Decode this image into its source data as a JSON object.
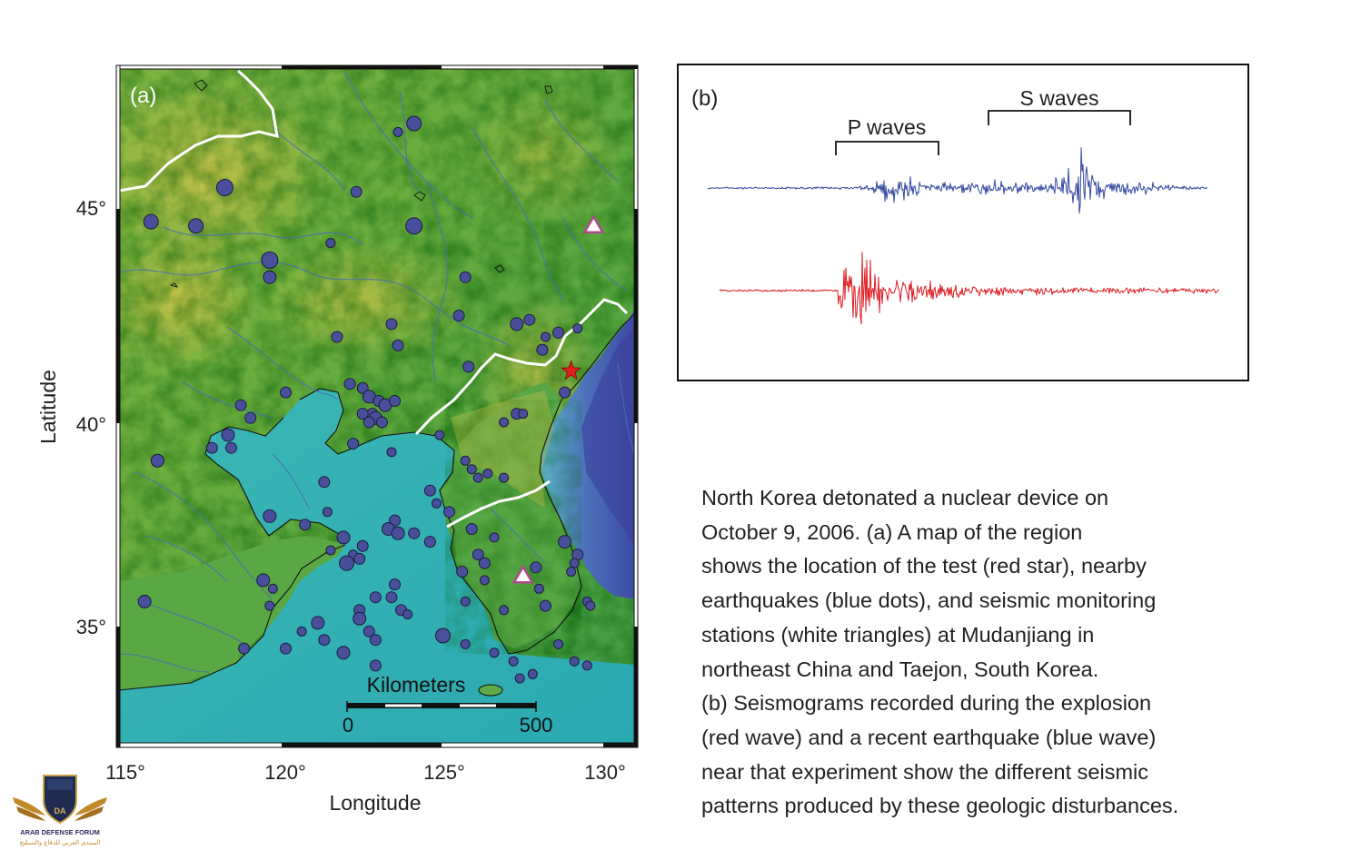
{
  "map": {
    "panel_label": "(a)",
    "ylabel": "Latitude",
    "xlabel": "Longitude",
    "lat_ticks": [
      "45°",
      "40°",
      "35°"
    ],
    "lon_ticks": [
      "115°",
      "120°",
      "125°",
      "130°"
    ],
    "scale": {
      "title": "Kilometers",
      "min": "0",
      "max": "500"
    },
    "test_site": {
      "lon": 128.9,
      "lat": 41.2,
      "color": "#e0201e"
    },
    "stations": [
      {
        "lon": 129.6,
        "lat": 44.6
      },
      {
        "lon": 127.4,
        "lat": 36.4
      }
    ],
    "earthquake_color": "#4a4f9c",
    "earthquakes": [
      [
        124.0,
        47.0,
        8
      ],
      [
        123.5,
        46.8,
        5
      ],
      [
        118.1,
        45.5,
        9
      ],
      [
        122.2,
        45.4,
        6
      ],
      [
        115.8,
        44.7,
        8
      ],
      [
        117.2,
        44.6,
        8
      ],
      [
        124.0,
        44.6,
        9
      ],
      [
        121.4,
        44.2,
        5
      ],
      [
        119.5,
        43.8,
        9
      ],
      [
        119.5,
        43.4,
        7
      ],
      [
        125.6,
        43.4,
        6
      ],
      [
        125.4,
        42.5,
        6
      ],
      [
        123.3,
        42.3,
        6
      ],
      [
        127.2,
        42.3,
        7
      ],
      [
        127.6,
        42.4,
        6
      ],
      [
        128.5,
        42.1,
        6
      ],
      [
        128.1,
        42.0,
        5
      ],
      [
        129.1,
        42.2,
        5
      ],
      [
        121.6,
        42.0,
        6
      ],
      [
        123.5,
        41.8,
        6
      ],
      [
        128.0,
        41.7,
        6
      ],
      [
        125.7,
        41.3,
        6
      ],
      [
        122.0,
        40.9,
        6
      ],
      [
        122.4,
        40.8,
        6
      ],
      [
        122.6,
        40.6,
        7
      ],
      [
        122.9,
        40.5,
        6
      ],
      [
        123.1,
        40.4,
        7
      ],
      [
        123.4,
        40.5,
        6
      ],
      [
        122.7,
        40.2,
        6
      ],
      [
        122.4,
        40.2,
        6
      ],
      [
        122.8,
        40.1,
        7
      ],
      [
        122.6,
        40.0,
        6
      ],
      [
        123.0,
        40.0,
        6
      ],
      [
        120.0,
        40.7,
        6
      ],
      [
        118.6,
        40.4,
        6
      ],
      [
        118.9,
        40.1,
        6
      ],
      [
        128.7,
        40.7,
        6
      ],
      [
        127.2,
        40.2,
        6
      ],
      [
        127.4,
        40.2,
        5
      ],
      [
        126.8,
        40.0,
        5
      ],
      [
        118.2,
        39.7,
        7
      ],
      [
        118.3,
        39.4,
        6
      ],
      [
        117.7,
        39.4,
        6
      ],
      [
        122.1,
        39.5,
        6
      ],
      [
        124.8,
        39.7,
        5
      ],
      [
        123.3,
        39.3,
        5
      ],
      [
        116.0,
        39.1,
        7
      ],
      [
        125.6,
        39.1,
        5
      ],
      [
        125.8,
        38.9,
        5
      ],
      [
        126.0,
        38.7,
        5
      ],
      [
        126.3,
        38.8,
        5
      ],
      [
        126.8,
        38.7,
        5
      ],
      [
        121.2,
        38.6,
        6
      ],
      [
        124.5,
        38.4,
        6
      ],
      [
        124.7,
        38.1,
        5
      ],
      [
        125.1,
        37.9,
        6
      ],
      [
        121.3,
        37.9,
        5
      ],
      [
        119.5,
        37.8,
        7
      ],
      [
        120.6,
        37.6,
        6
      ],
      [
        123.4,
        37.7,
        6
      ],
      [
        123.2,
        37.5,
        7
      ],
      [
        123.5,
        37.4,
        7
      ],
      [
        124.0,
        37.4,
        6
      ],
      [
        124.5,
        37.2,
        6
      ],
      [
        125.8,
        37.5,
        6
      ],
      [
        126.5,
        37.3,
        5
      ],
      [
        121.8,
        37.3,
        7
      ],
      [
        122.4,
        37.1,
        6
      ],
      [
        122.1,
        36.9,
        5
      ],
      [
        122.3,
        36.8,
        6
      ],
      [
        121.4,
        37.0,
        5
      ],
      [
        128.7,
        37.2,
        7
      ],
      [
        129.1,
        36.9,
        6
      ],
      [
        129.0,
        36.7,
        5
      ],
      [
        126.0,
        36.9,
        6
      ],
      [
        126.2,
        36.7,
        6
      ],
      [
        121.9,
        36.7,
        8
      ],
      [
        127.8,
        36.6,
        6
      ],
      [
        125.5,
        36.5,
        6
      ],
      [
        126.2,
        36.3,
        5
      ],
      [
        128.9,
        36.5,
        5
      ],
      [
        119.3,
        36.3,
        7
      ],
      [
        119.6,
        36.1,
        5
      ],
      [
        123.4,
        36.2,
        6
      ],
      [
        127.9,
        36.1,
        5
      ],
      [
        115.6,
        35.8,
        7
      ],
      [
        119.5,
        35.7,
        5
      ],
      [
        122.3,
        35.6,
        6
      ],
      [
        122.8,
        35.9,
        6
      ],
      [
        123.3,
        35.9,
        6
      ],
      [
        123.6,
        35.6,
        6
      ],
      [
        128.1,
        35.7,
        6
      ],
      [
        129.4,
        35.8,
        5
      ],
      [
        121.0,
        35.3,
        7
      ],
      [
        122.3,
        35.4,
        7
      ],
      [
        123.8,
        35.5,
        5
      ],
      [
        125.6,
        35.8,
        5
      ],
      [
        126.8,
        35.6,
        5
      ],
      [
        129.5,
        35.7,
        5
      ],
      [
        120.5,
        35.1,
        5
      ],
      [
        121.2,
        34.9,
        6
      ],
      [
        122.6,
        35.1,
        6
      ],
      [
        124.9,
        35.0,
        8
      ],
      [
        125.6,
        34.8,
        5
      ],
      [
        122.8,
        34.9,
        6
      ],
      [
        118.7,
        34.7,
        6
      ],
      [
        120.0,
        34.7,
        6
      ],
      [
        121.8,
        34.6,
        7
      ],
      [
        126.5,
        34.6,
        5
      ],
      [
        127.1,
        34.4,
        5
      ],
      [
        128.5,
        34.8,
        5
      ],
      [
        129.0,
        34.4,
        5
      ],
      [
        129.4,
        34.3,
        5
      ],
      [
        127.7,
        34.1,
        5
      ],
      [
        127.3,
        34.0,
        5
      ],
      [
        122.8,
        34.3,
        6
      ]
    ]
  },
  "seismogram": {
    "panel_label": "(b)",
    "p_label": "P waves",
    "s_label": "S waves",
    "earthquake_color": "#3448a0",
    "explosion_color": "#e01b22"
  },
  "caption": [
    "North Korea detonated a nuclear device on",
    "October 9, 2006. (a) A map of the region",
    "shows the location of the test (red star), nearby",
    "earthquakes (blue dots), and seismic monitoring",
    "stations (white triangles) at Mudanjiang in",
    "northeast China and Taejon, South Korea.",
    "(b) Seismograms recorded during the explosion",
    "(red wave) and a recent earthquake (blue wave)",
    "near that experiment show the different seismic",
    "patterns produced by these geologic disturbances."
  ],
  "logo": {
    "abbr": "DA",
    "name": "ARAB DEFENSE FORUM",
    "name_ar": "المنتدى العربي للدفاع والتسليح"
  }
}
